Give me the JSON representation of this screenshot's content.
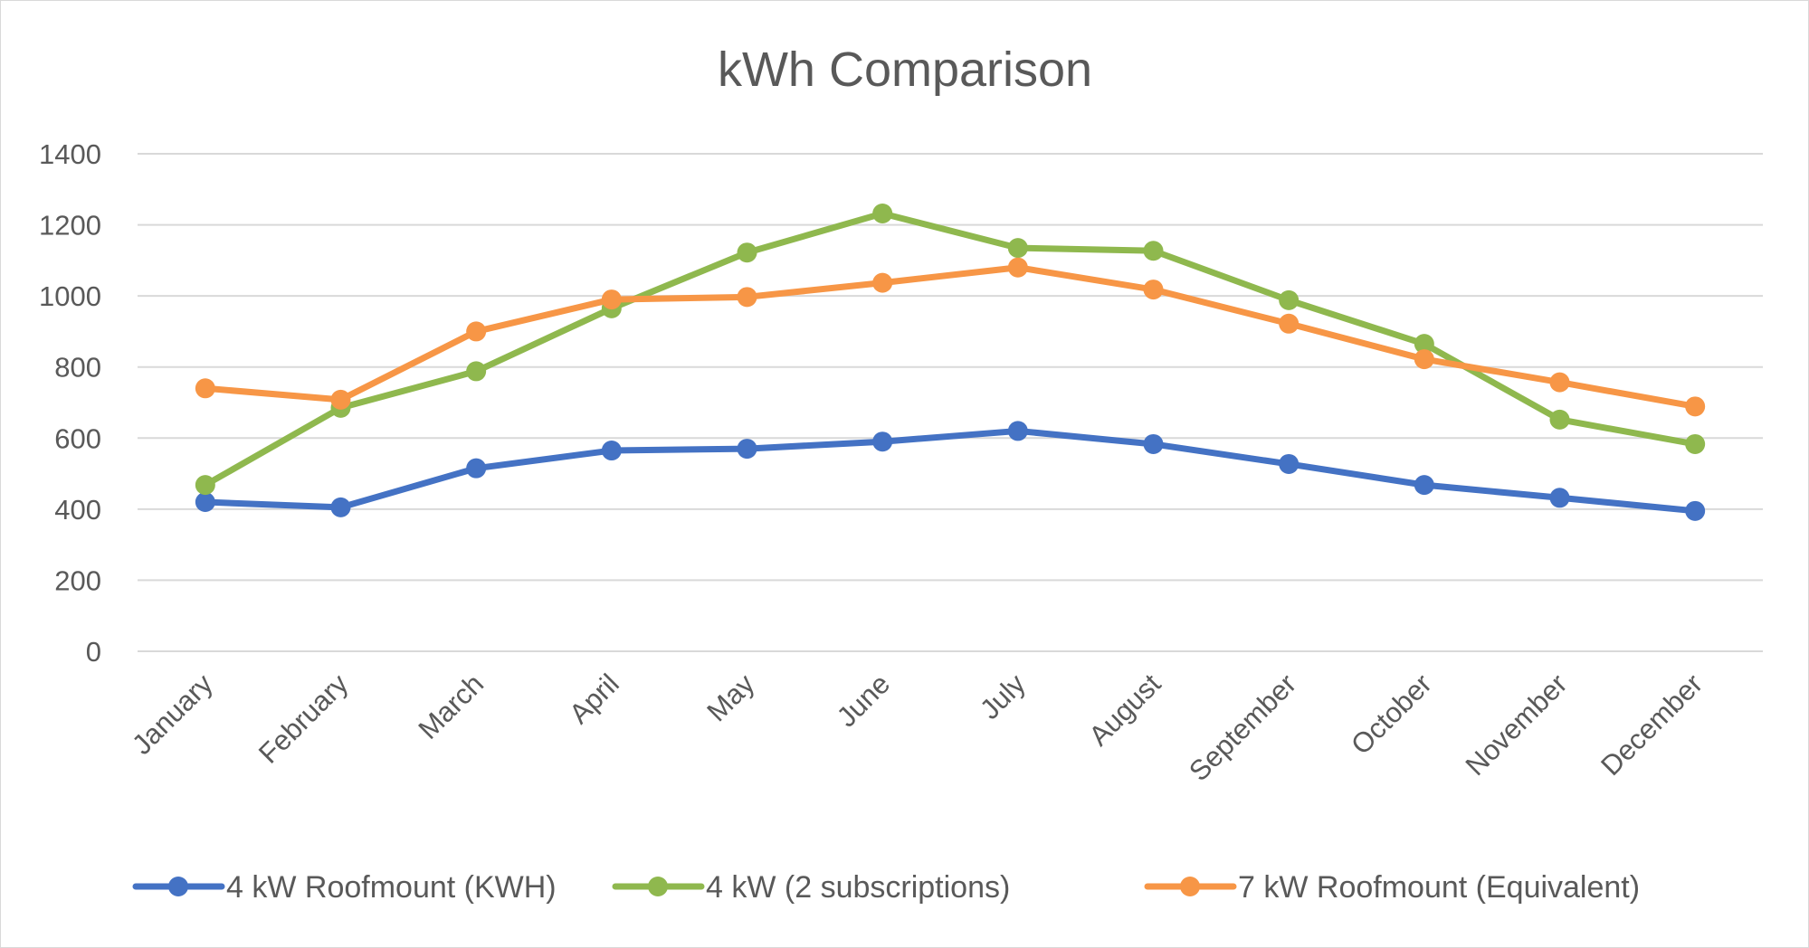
{
  "chart_data": {
    "type": "line",
    "title": "kWh Comparison",
    "xlabel": "",
    "ylabel": "",
    "categories": [
      "January",
      "February",
      "March",
      "April",
      "May",
      "June",
      "July",
      "August",
      "September",
      "October",
      "November",
      "December"
    ],
    "ylim": [
      0,
      1400
    ],
    "yticks": [
      0,
      200,
      400,
      600,
      800,
      1000,
      1200,
      1400
    ],
    "grid": true,
    "legend_position": "bottom",
    "series": [
      {
        "name": "4 kW Roofmount  (KWH)",
        "color": "#4472C4",
        "values": [
          420,
          405,
          515,
          565,
          570,
          590,
          620,
          583,
          527,
          468,
          432,
          395
        ]
      },
      {
        "name": "4 kW (2 subscriptions)",
        "color": "#8FB84E",
        "values": [
          468,
          685,
          788,
          965,
          1122,
          1232,
          1135,
          1127,
          988,
          865,
          652,
          583
        ]
      },
      {
        "name": "7 kW Roofmount (Equivalent)",
        "color": "#F79646",
        "values": [
          740,
          708,
          900,
          990,
          997,
          1037,
          1080,
          1018,
          922,
          822,
          757,
          689
        ]
      }
    ]
  }
}
